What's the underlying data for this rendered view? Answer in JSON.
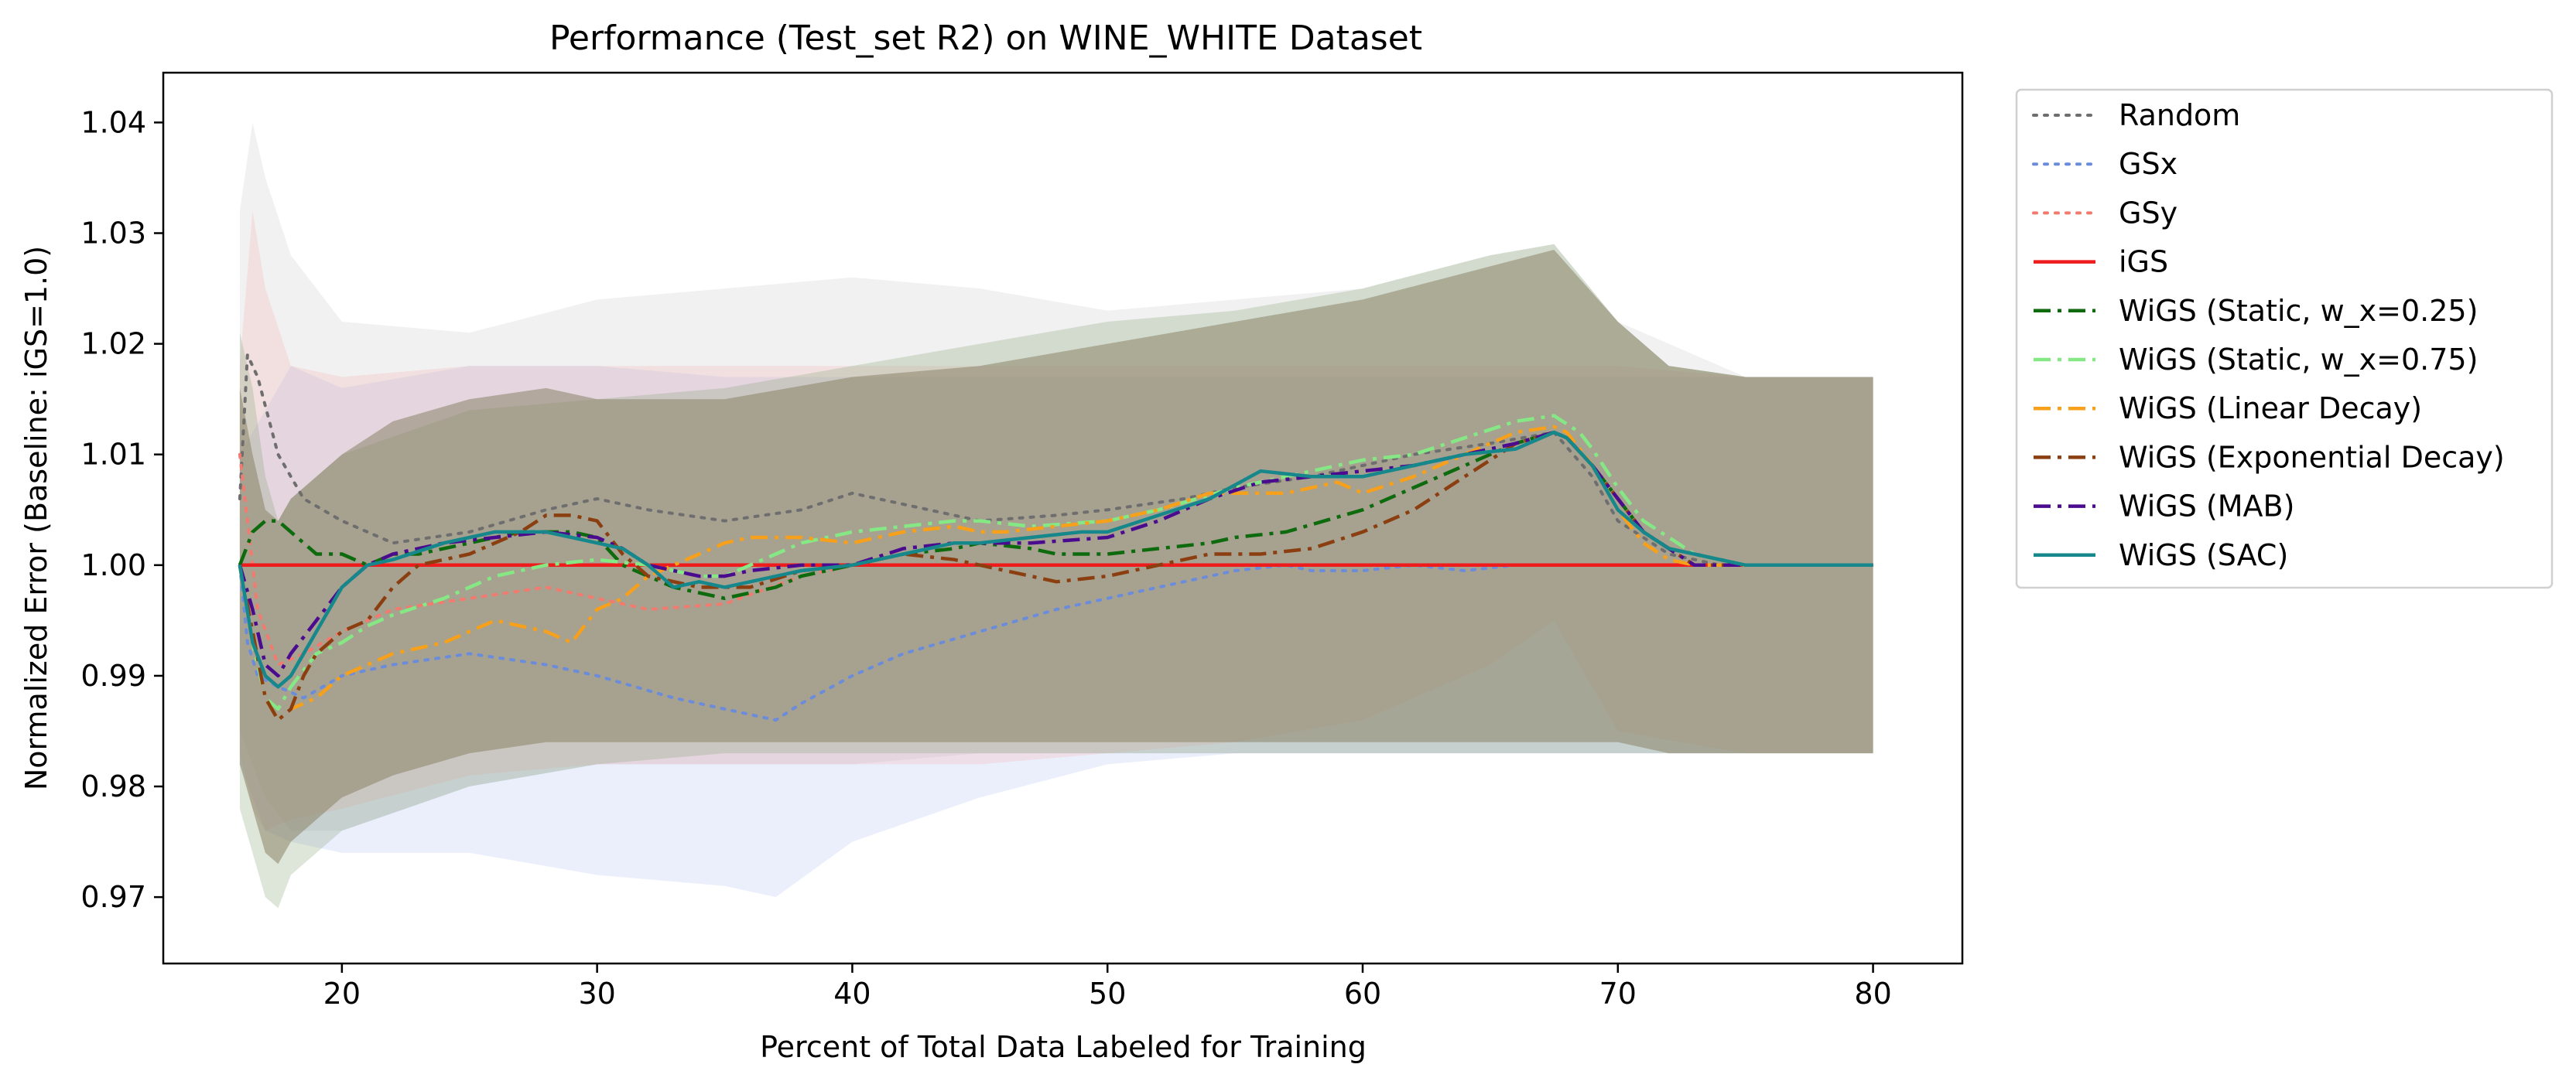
{
  "chart_data": {
    "type": "line",
    "title": "Performance (Test_set R2) on WINE_WHITE Dataset",
    "xlabel": "Percent of Total Data Labeled for Training",
    "ylabel": "Normalized Error (Baseline: iGS=1.0)",
    "xlim": [
      13,
      83.5
    ],
    "ylim": [
      0.964,
      1.0445
    ],
    "xticks": [
      20,
      30,
      40,
      50,
      60,
      70,
      80
    ],
    "yticks": [
      0.97,
      0.98,
      0.99,
      1.0,
      1.01,
      1.02,
      1.03,
      1.04
    ],
    "xtick_labels": [
      "20",
      "30",
      "40",
      "50",
      "60",
      "70",
      "80"
    ],
    "ytick_labels": [
      "0.97",
      "0.98",
      "0.99",
      "1.00",
      "1.01",
      "1.02",
      "1.03",
      "1.04"
    ],
    "grid": false,
    "legend_position": "outside-right",
    "bands": [
      {
        "color": "#b3b3b3",
        "opacity": 0.18,
        "x": [
          16,
          16.5,
          17,
          18,
          20,
          25,
          30,
          35,
          40,
          45,
          50,
          55,
          60,
          65,
          67.5,
          70,
          75,
          80
        ],
        "upper": [
          1.032,
          1.04,
          1.035,
          1.028,
          1.022,
          1.021,
          1.024,
          1.025,
          1.026,
          1.025,
          1.023,
          1.024,
          1.025,
          1.028,
          1.029,
          1.022,
          1.017,
          1.017
        ],
        "lower": [
          0.985,
          0.982,
          0.979,
          0.976,
          0.976,
          0.98,
          0.982,
          0.982,
          0.982,
          0.983,
          0.983,
          0.983,
          0.983,
          0.983,
          0.983,
          0.983,
          0.983,
          0.983
        ]
      },
      {
        "color": "#8fa9ee",
        "opacity": 0.18,
        "x": [
          16,
          17,
          18,
          20,
          25,
          30,
          35,
          37,
          40,
          45,
          50,
          55,
          60,
          65,
          67.5,
          70,
          75,
          80
        ],
        "upper": [
          1.01,
          1.014,
          1.018,
          1.016,
          1.018,
          1.018,
          1.017,
          1.017,
          1.017,
          1.017,
          1.017,
          1.017,
          1.017,
          1.017,
          1.017,
          1.017,
          1.017,
          1.017
        ],
        "lower": [
          0.982,
          0.976,
          0.975,
          0.974,
          0.974,
          0.972,
          0.971,
          0.97,
          0.975,
          0.979,
          0.982,
          0.983,
          0.983,
          0.983,
          0.983,
          0.983,
          0.983,
          0.983
        ]
      },
      {
        "color": "#f4a3a3",
        "opacity": 0.22,
        "x": [
          16,
          16.5,
          17,
          18,
          20,
          25,
          30,
          35,
          40,
          45,
          50,
          55,
          60,
          65,
          67.5,
          70,
          75,
          80
        ],
        "upper": [
          1.018,
          1.032,
          1.025,
          1.018,
          1.017,
          1.018,
          1.018,
          1.018,
          1.018,
          1.018,
          1.018,
          1.018,
          1.018,
          1.018,
          1.018,
          1.018,
          1.017,
          1.017
        ],
        "lower": [
          0.983,
          0.978,
          0.976,
          0.977,
          0.978,
          0.981,
          0.982,
          0.982,
          0.982,
          0.982,
          0.983,
          0.984,
          0.986,
          0.991,
          0.995,
          0.985,
          0.983,
          0.983
        ]
      },
      {
        "color": "#7a9a6a",
        "opacity": 0.25,
        "x": [
          16,
          16.5,
          17,
          17.5,
          18,
          20,
          25,
          30,
          35,
          40,
          45,
          50,
          55,
          60,
          65,
          67.5,
          70,
          72,
          75,
          80
        ],
        "upper": [
          1.021,
          1.016,
          1.008,
          1.004,
          1.006,
          1.01,
          1.014,
          1.015,
          1.016,
          1.018,
          1.02,
          1.022,
          1.023,
          1.025,
          1.028,
          1.029,
          1.022,
          1.018,
          1.017,
          1.017
        ],
        "lower": [
          0.978,
          0.974,
          0.97,
          0.969,
          0.972,
          0.976,
          0.98,
          0.982,
          0.983,
          0.983,
          0.983,
          0.983,
          0.983,
          0.983,
          0.983,
          0.983,
          0.983,
          0.983,
          0.983,
          0.983
        ]
      },
      {
        "color": "#8a8468",
        "opacity": 0.55,
        "x": [
          16,
          16.5,
          17,
          17.5,
          18,
          20,
          22,
          25,
          28,
          30,
          35,
          40,
          45,
          50,
          55,
          60,
          65,
          67.5,
          70,
          72,
          75,
          80
        ],
        "upper": [
          1.016,
          1.01,
          1.005,
          1.004,
          1.006,
          1.01,
          1.013,
          1.015,
          1.016,
          1.015,
          1.015,
          1.017,
          1.018,
          1.02,
          1.022,
          1.024,
          1.027,
          1.0285,
          1.022,
          1.018,
          1.017,
          1.017
        ],
        "lower": [
          0.982,
          0.978,
          0.974,
          0.973,
          0.975,
          0.979,
          0.981,
          0.983,
          0.984,
          0.984,
          0.984,
          0.984,
          0.984,
          0.984,
          0.984,
          0.984,
          0.984,
          0.984,
          0.984,
          0.983,
          0.983,
          0.983
        ]
      }
    ],
    "series": [
      {
        "name": "Random",
        "color": "#6e6e6e",
        "style": "dotted",
        "x": [
          16,
          16.3,
          16.7,
          17.5,
          18.5,
          20,
          22,
          25,
          28,
          30,
          32,
          35,
          38,
          40,
          42,
          45,
          48,
          50,
          53,
          55,
          58,
          60,
          62,
          65,
          67.5,
          69,
          70,
          72,
          74,
          76,
          78,
          80
        ],
        "y": [
          1.006,
          1.019,
          1.017,
          1.01,
          1.006,
          1.004,
          1.002,
          1.003,
          1.005,
          1.006,
          1.005,
          1.004,
          1.005,
          1.0065,
          1.0055,
          1.004,
          1.0045,
          1.005,
          1.006,
          1.007,
          1.008,
          1.009,
          1.01,
          1.011,
          1.012,
          1.008,
          1.004,
          1.001,
          1.0,
          1.0,
          1.0,
          1.0
        ]
      },
      {
        "name": "GSx",
        "color": "#6b8cdb",
        "style": "dotted",
        "x": [
          16,
          16.3,
          16.7,
          17.5,
          18.5,
          20,
          22,
          25,
          28,
          30,
          33,
          35,
          37,
          38,
          40,
          42,
          45,
          48,
          50,
          52,
          55,
          57,
          58,
          60,
          62,
          64,
          66
        ],
        "y": [
          1.0,
          0.993,
          0.99,
          0.989,
          0.988,
          0.99,
          0.991,
          0.992,
          0.991,
          0.99,
          0.988,
          0.987,
          0.986,
          0.9875,
          0.99,
          0.992,
          0.994,
          0.996,
          0.997,
          0.998,
          0.9995,
          1.0,
          0.9995,
          0.9995,
          1.0,
          0.9995,
          1.0
        ]
      },
      {
        "name": "GSy",
        "color": "#f27b6f",
        "style": "dotted",
        "x": [
          16,
          16.3,
          16.7,
          17.5,
          18.5,
          20,
          22,
          25,
          28,
          30,
          32,
          35,
          38,
          40
        ],
        "y": [
          1.01,
          1.004,
          0.996,
          0.991,
          0.992,
          0.994,
          0.996,
          0.997,
          0.998,
          0.997,
          0.996,
          0.9965,
          0.999,
          1.0
        ]
      },
      {
        "name": "iGS",
        "color": "#ee1c1c",
        "style": "solid",
        "x": [
          16,
          80
        ],
        "y": [
          1.0,
          1.0
        ]
      },
      {
        "name": "WiGS (Static, w_x=0.25)",
        "color": "#0d6a0d",
        "style": "dashdot",
        "x": [
          16,
          16.5,
          17,
          17.5,
          18,
          19,
          20,
          21,
          22,
          23,
          25,
          27,
          29,
          30,
          31,
          33,
          35,
          36,
          37,
          38,
          40,
          42,
          44,
          45,
          47,
          48,
          50,
          52,
          54,
          55,
          57,
          60,
          62,
          64,
          66,
          67.5,
          68,
          69,
          70,
          71,
          72,
          73,
          75,
          78,
          80
        ],
        "y": [
          1.0,
          1.003,
          1.004,
          1.004,
          1.003,
          1.001,
          1.001,
          1.0,
          1.001,
          1.001,
          1.002,
          1.003,
          1.003,
          1.0025,
          1.0,
          0.998,
          0.997,
          0.9975,
          0.998,
          0.999,
          1.0,
          1.001,
          1.0015,
          1.002,
          1.0015,
          1.001,
          1.001,
          1.0015,
          1.002,
          1.0025,
          1.003,
          1.005,
          1.007,
          1.009,
          1.011,
          1.012,
          1.0115,
          1.009,
          1.006,
          1.003,
          1.0015,
          1.001,
          1.0,
          1.0,
          1.0
        ]
      },
      {
        "name": "WiGS (Static, w_x=0.75)",
        "color": "#85e885",
        "style": "dashdot",
        "x": [
          16,
          16.5,
          17,
          17.5,
          18,
          19,
          20,
          21,
          22,
          24,
          26,
          28,
          30,
          32,
          34,
          35,
          36,
          38,
          40,
          42,
          44,
          45,
          47,
          50,
          52,
          55,
          57,
          59,
          60,
          62,
          64,
          66,
          67.5,
          68.5,
          69,
          70,
          71,
          72,
          73,
          75,
          78,
          80
        ],
        "y": [
          1.0,
          0.993,
          0.988,
          0.987,
          0.989,
          0.992,
          0.993,
          0.9945,
          0.9955,
          0.997,
          0.999,
          1.0,
          1.0005,
          1.0,
          0.999,
          0.999,
          1.0,
          1.002,
          1.003,
          1.0035,
          1.004,
          1.004,
          1.0035,
          1.004,
          1.005,
          1.007,
          1.008,
          1.009,
          1.0095,
          1.01,
          1.0115,
          1.013,
          1.0135,
          1.012,
          1.0105,
          1.007,
          1.004,
          1.0025,
          1.001,
          1.0,
          1.0,
          1.0
        ]
      },
      {
        "name": "WiGS (Linear Decay)",
        "color": "#f6a01b",
        "style": "dashdot",
        "x": [
          16,
          16.5,
          17,
          17.5,
          18,
          19,
          20,
          22,
          24,
          26,
          28,
          29,
          30,
          31,
          32,
          34,
          35,
          36,
          38,
          40,
          42,
          44,
          45,
          46,
          48,
          50,
          52,
          54,
          55,
          57,
          59,
          60,
          62,
          64,
          66,
          67.5,
          68,
          69,
          70,
          71,
          72,
          73,
          75,
          78,
          80
        ],
        "y": [
          1.0,
          0.994,
          0.988,
          0.986,
          0.987,
          0.988,
          0.99,
          0.992,
          0.993,
          0.995,
          0.994,
          0.993,
          0.996,
          0.997,
          0.999,
          1.001,
          1.002,
          1.0025,
          1.0025,
          1.002,
          1.003,
          1.0035,
          1.003,
          1.003,
          1.0035,
          1.004,
          1.005,
          1.0065,
          1.0065,
          1.0065,
          1.0075,
          1.0065,
          1.008,
          1.01,
          1.012,
          1.0125,
          1.012,
          1.009,
          1.005,
          1.002,
          1.0005,
          1.0,
          1.0,
          1.0,
          1.0
        ]
      },
      {
        "name": "WiGS (Exponential Decay)",
        "color": "#8b3f10",
        "style": "dashdot",
        "x": [
          16,
          16.5,
          17,
          17.5,
          18,
          18.5,
          19,
          20,
          21,
          22,
          23,
          25,
          27,
          28,
          29,
          30,
          31,
          32,
          34,
          36,
          38,
          40,
          42,
          44,
          45,
          47,
          48,
          50,
          52,
          54,
          56,
          58,
          60,
          62,
          64,
          66,
          67.5,
          68,
          69,
          70,
          71,
          72,
          73,
          75,
          78,
          80
        ],
        "y": [
          1.0,
          0.994,
          0.988,
          0.986,
          0.987,
          0.99,
          0.992,
          0.994,
          0.995,
          0.998,
          1.0,
          1.001,
          1.003,
          1.0045,
          1.0045,
          1.004,
          1.001,
          0.999,
          0.998,
          0.998,
          0.9995,
          1.0,
          1.001,
          1.0005,
          1.0,
          0.999,
          0.9985,
          0.999,
          1.0,
          1.001,
          1.001,
          1.0015,
          1.003,
          1.005,
          1.008,
          1.011,
          1.012,
          1.0115,
          1.009,
          1.006,
          1.003,
          1.0015,
          1.0,
          1.0,
          1.0,
          1.0
        ]
      },
      {
        "name": "WiGS (MAB)",
        "color": "#4b0b8f",
        "style": "dashdot",
        "x": [
          16,
          16.5,
          17,
          17.5,
          18,
          19,
          20,
          21,
          22,
          24,
          26,
          28,
          30,
          31,
          32,
          34,
          35,
          36,
          38,
          40,
          42,
          44,
          45,
          47,
          50,
          52,
          54,
          56,
          58,
          60,
          62,
          64,
          66,
          67.5,
          68,
          69,
          70,
          71,
          72,
          73,
          75,
          78,
          80
        ],
        "y": [
          1.0,
          0.996,
          0.991,
          0.99,
          0.992,
          0.995,
          0.998,
          1.0,
          1.001,
          1.002,
          1.0025,
          1.003,
          1.0025,
          1.0015,
          1.0,
          0.999,
          0.999,
          0.9995,
          1.0,
          1.0,
          1.0015,
          1.002,
          1.002,
          1.002,
          1.0025,
          1.004,
          1.006,
          1.0075,
          1.008,
          1.0085,
          1.009,
          1.01,
          1.011,
          1.012,
          1.0115,
          1.009,
          1.006,
          1.003,
          1.0015,
          1.0,
          1.0,
          1.0,
          1.0
        ]
      },
      {
        "name": "WiGS (SAC)",
        "color": "#16878a",
        "style": "solid",
        "x": [
          16,
          16.5,
          17,
          17.5,
          18,
          19,
          20,
          21,
          22,
          24,
          26,
          28,
          29,
          30,
          31,
          32,
          33,
          34,
          35,
          36,
          38,
          40,
          42,
          44,
          45,
          47,
          49,
          50,
          52,
          54,
          56,
          58,
          60,
          62,
          64,
          66,
          67.5,
          68,
          69,
          70,
          71,
          72,
          73,
          75,
          78,
          80
        ],
        "y": [
          1.0,
          0.993,
          0.99,
          0.989,
          0.99,
          0.994,
          0.998,
          1.0,
          1.0005,
          1.002,
          1.003,
          1.003,
          1.0025,
          1.002,
          1.0015,
          1.0,
          0.998,
          0.9985,
          0.998,
          0.9985,
          0.9995,
          1.0,
          1.001,
          1.002,
          1.002,
          1.0025,
          1.003,
          1.003,
          1.0045,
          1.006,
          1.0085,
          1.008,
          1.008,
          1.009,
          1.01,
          1.0105,
          1.012,
          1.0115,
          1.009,
          1.005,
          1.003,
          1.0015,
          1.001,
          1.0,
          1.0,
          1.0
        ]
      }
    ]
  }
}
